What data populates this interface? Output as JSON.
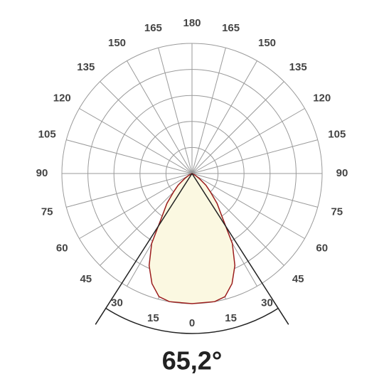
{
  "chart_data": {
    "type": "polar",
    "x": [
      -70,
      -60,
      -55,
      -50,
      -45,
      -40,
      -35,
      -30,
      -25,
      -20,
      -15,
      -10,
      0,
      10,
      15,
      20,
      25,
      30,
      35,
      40,
      45,
      50,
      55,
      60,
      70
    ],
    "values": [
      0,
      0.03,
      0.07,
      0.14,
      0.2,
      0.3,
      0.4,
      0.62,
      0.78,
      0.9,
      0.98,
      1.0,
      1.0,
      1.0,
      0.98,
      0.9,
      0.78,
      0.62,
      0.4,
      0.3,
      0.2,
      0.14,
      0.07,
      0.03,
      0
    ],
    "color": "#9b1c1c",
    "fill": "#fbf8e1",
    "rlim": [
      0,
      1
    ],
    "rticks": [
      0.2,
      0.4,
      0.6,
      0.8,
      1
    ],
    "angle_ticks": [
      0,
      15,
      30,
      45,
      60,
      75,
      90,
      105,
      120,
      135,
      150,
      165,
      180
    ],
    "beam_angle": 65.2,
    "beam_angle_label": "65,2°"
  }
}
